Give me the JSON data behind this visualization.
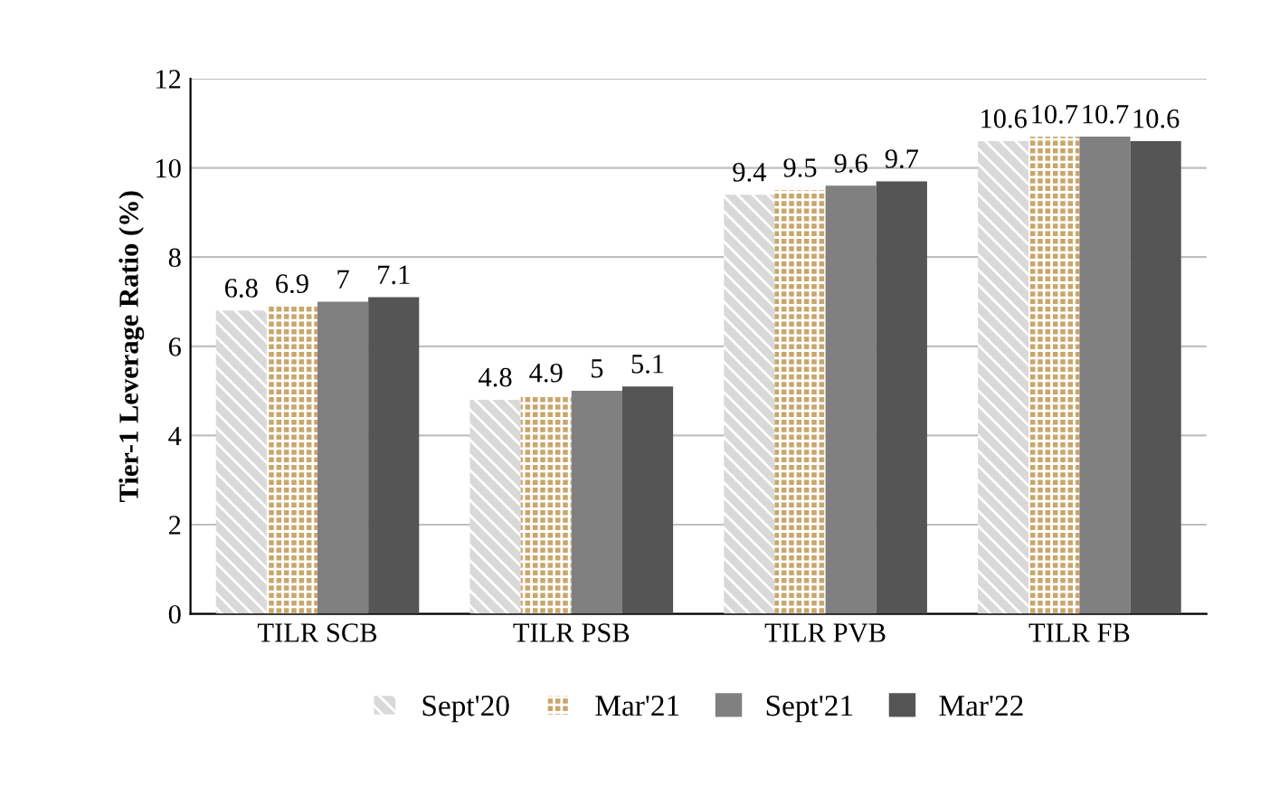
{
  "chart_data": {
    "type": "bar",
    "ylabel": "Tier-1 Leverage Ratio (%)",
    "categories": [
      "TILR SCB",
      "TILR PSB",
      "TILR PVB",
      "TILR FB"
    ],
    "series": [
      {
        "name": "Sept'20",
        "color": "#d9d9d9",
        "values": [
          6.8,
          4.8,
          9.4,
          10.6
        ]
      },
      {
        "name": "Mar'21",
        "color": "#c9a66b",
        "values": [
          6.9,
          4.9,
          9.5,
          10.7
        ]
      },
      {
        "name": "Sept'21",
        "color": "#808080",
        "values": [
          7,
          5,
          9.6,
          10.7
        ]
      },
      {
        "name": "Mar'22",
        "color": "#555555",
        "values": [
          7.1,
          5.1,
          9.7,
          10.6
        ]
      }
    ],
    "ylim": [
      0,
      12
    ],
    "yticks": [
      0,
      2,
      4,
      6,
      8,
      10,
      12
    ],
    "grid": "y",
    "legend": "bottom",
    "data_labels": true
  }
}
